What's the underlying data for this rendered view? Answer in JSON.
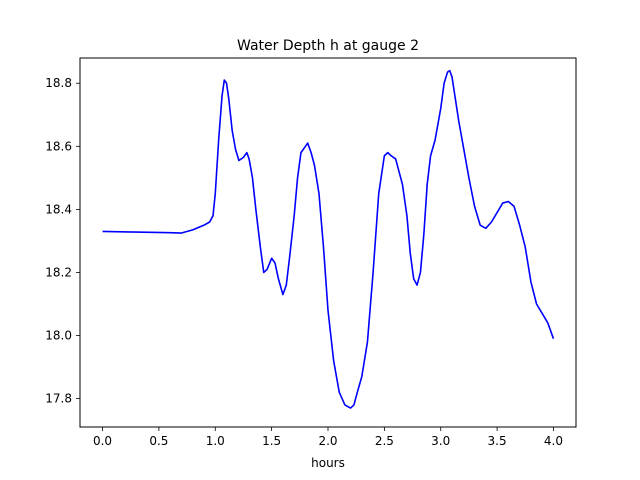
{
  "chart_data": {
    "type": "line",
    "title": "Water Depth h at gauge 2",
    "xlabel": "hours",
    "ylabel": "",
    "xlim": [
      -0.2,
      4.2
    ],
    "ylim": [
      17.71,
      18.88
    ],
    "grid": false,
    "xticks": [
      0.0,
      0.5,
      1.0,
      1.5,
      2.0,
      2.5,
      3.0,
      3.5,
      4.0
    ],
    "xtick_labels": [
      "0.0",
      "0.5",
      "1.0",
      "1.5",
      "2.0",
      "2.5",
      "3.0",
      "3.5",
      "4.0"
    ],
    "yticks": [
      17.8,
      18.0,
      18.2,
      18.4,
      18.6,
      18.8
    ],
    "ytick_labels": [
      "17.8",
      "18.0",
      "18.2",
      "18.4",
      "18.6",
      "18.8"
    ],
    "series": [
      {
        "color": "#0000ff",
        "x": [
          0.0,
          0.3,
          0.6,
          0.7,
          0.8,
          0.9,
          0.95,
          0.98,
          1.0,
          1.03,
          1.06,
          1.08,
          1.1,
          1.12,
          1.15,
          1.18,
          1.21,
          1.25,
          1.28,
          1.3,
          1.33,
          1.36,
          1.4,
          1.43,
          1.46,
          1.5,
          1.53,
          1.56,
          1.6,
          1.63,
          1.66,
          1.7,
          1.73,
          1.76,
          1.8,
          1.82,
          1.85,
          1.88,
          1.92,
          1.96,
          2.0,
          2.05,
          2.1,
          2.15,
          2.2,
          2.23,
          2.26,
          2.3,
          2.35,
          2.4,
          2.45,
          2.5,
          2.53,
          2.56,
          2.6,
          2.63,
          2.66,
          2.7,
          2.73,
          2.76,
          2.79,
          2.82,
          2.85,
          2.88,
          2.91,
          2.95,
          3.0,
          3.03,
          3.06,
          3.08,
          3.1,
          3.13,
          3.16,
          3.2,
          3.25,
          3.3,
          3.35,
          3.4,
          3.45,
          3.5,
          3.55,
          3.6,
          3.65,
          3.7,
          3.75,
          3.8,
          3.85,
          3.9,
          3.95,
          4.0
        ],
        "y": [
          18.33,
          18.328,
          18.326,
          18.325,
          18.335,
          18.35,
          18.36,
          18.38,
          18.45,
          18.62,
          18.76,
          18.81,
          18.8,
          18.75,
          18.65,
          18.59,
          18.555,
          18.565,
          18.58,
          18.56,
          18.5,
          18.4,
          18.28,
          18.2,
          18.21,
          18.245,
          18.23,
          18.18,
          18.13,
          18.16,
          18.25,
          18.38,
          18.5,
          18.58,
          18.6,
          18.61,
          18.58,
          18.54,
          18.45,
          18.28,
          18.08,
          17.92,
          17.82,
          17.78,
          17.77,
          17.78,
          17.82,
          17.87,
          17.98,
          18.2,
          18.45,
          18.57,
          18.58,
          18.57,
          18.56,
          18.52,
          18.48,
          18.38,
          18.26,
          18.18,
          18.16,
          18.2,
          18.32,
          18.48,
          18.57,
          18.62,
          18.72,
          18.8,
          18.835,
          18.84,
          18.82,
          18.75,
          18.68,
          18.6,
          18.5,
          18.41,
          18.35,
          18.34,
          18.36,
          18.39,
          18.42,
          18.425,
          18.41,
          18.35,
          18.28,
          18.17,
          18.1,
          18.07,
          18.04,
          17.99
        ]
      }
    ]
  }
}
